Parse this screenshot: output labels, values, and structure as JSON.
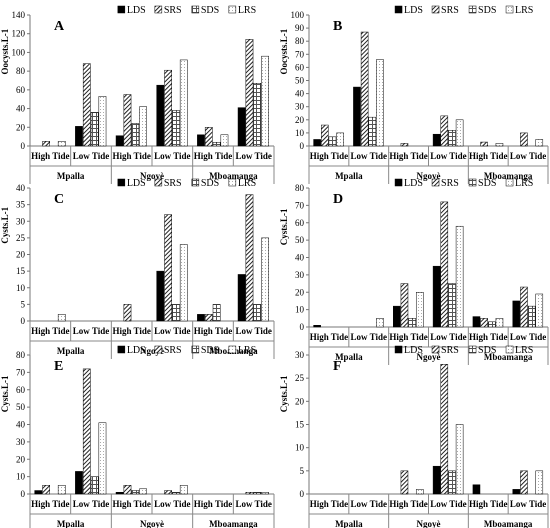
{
  "legend": [
    "LDS",
    "SRS",
    "SDS",
    "LRS"
  ],
  "chart_data": [
    {
      "type": "bar",
      "panel_label": "A",
      "ylabel": "Oocysts.L-1",
      "ylim": [
        0,
        140
      ],
      "yticks": [
        0,
        20,
        40,
        60,
        80,
        100,
        120,
        140
      ],
      "tide_labels": [
        "High Tide",
        "Low Tide"
      ],
      "sites": [
        "Mpalla",
        "Ngoyè",
        "Mboamanga"
      ],
      "series": [
        {
          "name": "LDS",
          "values": [
            0,
            21,
            11,
            65,
            12,
            41
          ]
        },
        {
          "name": "SRS",
          "values": [
            5,
            88,
            55,
            81,
            20,
            114
          ]
        },
        {
          "name": "SDS",
          "values": [
            0,
            36,
            24,
            38,
            4,
            67
          ]
        },
        {
          "name": "LRS",
          "values": [
            5,
            53,
            42,
            92,
            12,
            96
          ]
        }
      ]
    },
    {
      "type": "bar",
      "panel_label": "B",
      "ylabel": "Oocysts.L-1",
      "ylim": [
        0,
        100
      ],
      "yticks": [
        0,
        10,
        20,
        30,
        40,
        50,
        60,
        70,
        80,
        90,
        100
      ],
      "tide_labels": [
        "High Tide",
        "Low Tide"
      ],
      "sites": [
        "Mpalla",
        "Ngoyè",
        "Mboamanga"
      ],
      "series": [
        {
          "name": "LDS",
          "values": [
            5,
            45,
            0,
            9,
            0,
            0
          ]
        },
        {
          "name": "SRS",
          "values": [
            16,
            87,
            2,
            23,
            3,
            10
          ]
        },
        {
          "name": "SDS",
          "values": [
            7,
            22,
            0,
            12,
            0,
            0
          ]
        },
        {
          "name": "LRS",
          "values": [
            10,
            66,
            0,
            20,
            2,
            5
          ]
        }
      ]
    },
    {
      "type": "bar",
      "panel_label": "C",
      "ylabel": "Cysts.L-1",
      "ylim": [
        0,
        40
      ],
      "yticks": [
        0,
        5,
        10,
        15,
        20,
        25,
        30,
        35,
        40
      ],
      "tide_labels": [
        "High Tide",
        "Low Tide"
      ],
      "sites": [
        "Mpalla",
        "Ngoyè",
        "Mboamanga"
      ],
      "series": [
        {
          "name": "LDS",
          "values": [
            0,
            0,
            0,
            15,
            2,
            14
          ]
        },
        {
          "name": "SRS",
          "values": [
            0,
            0,
            5,
            32,
            2,
            38
          ]
        },
        {
          "name": "SDS",
          "values": [
            0,
            0,
            0,
            5,
            5,
            5
          ]
        },
        {
          "name": "LRS",
          "values": [
            2,
            0,
            0,
            23,
            0,
            25
          ]
        }
      ]
    },
    {
      "type": "bar",
      "panel_label": "D",
      "ylabel": "Cysts.L-1",
      "ylim": [
        0,
        80
      ],
      "yticks": [
        0,
        10,
        20,
        30,
        40,
        50,
        60,
        70,
        80
      ],
      "tide_labels": [
        "High Tide",
        "Low Tide"
      ],
      "sites": [
        "Mpalla",
        "Ngoyè",
        "Mboamanga"
      ],
      "series": [
        {
          "name": "LDS",
          "values": [
            1,
            0,
            12,
            35,
            6,
            15
          ]
        },
        {
          "name": "SRS",
          "values": [
            0,
            0,
            25,
            72,
            5,
            23
          ]
        },
        {
          "name": "SDS",
          "values": [
            0,
            0,
            5,
            25,
            3,
            12
          ]
        },
        {
          "name": "LRS",
          "values": [
            0,
            5,
            20,
            58,
            5,
            19
          ]
        }
      ]
    },
    {
      "type": "bar",
      "panel_label": "E",
      "ylabel": "Cysts.L-1",
      "ylim": [
        0,
        80
      ],
      "yticks": [
        0,
        10,
        20,
        30,
        40,
        50,
        60,
        70,
        80
      ],
      "tide_labels": [
        "High Tide",
        "Low Tide"
      ],
      "sites": [
        "Mpalla",
        "Ngoyè",
        "Mboamanga"
      ],
      "series": [
        {
          "name": "LDS",
          "values": [
            2,
            13,
            1,
            0,
            0,
            0
          ]
        },
        {
          "name": "SRS",
          "values": [
            5,
            72,
            5,
            2,
            0,
            1
          ]
        },
        {
          "name": "SDS",
          "values": [
            0,
            10,
            2,
            1,
            0,
            1
          ]
        },
        {
          "name": "LRS",
          "values": [
            5,
            41,
            3,
            5,
            0,
            1
          ]
        }
      ]
    },
    {
      "type": "bar",
      "panel_label": "F",
      "ylabel": "Cysts.L-1",
      "ylim": [
        0,
        30
      ],
      "yticks": [
        0,
        5,
        10,
        15,
        20,
        25,
        30
      ],
      "tide_labels": [
        "High Tide",
        "Low Tide"
      ],
      "sites": [
        "Mpalla",
        "Ngoyè",
        "Mboamanga"
      ],
      "series": [
        {
          "name": "LDS",
          "values": [
            0,
            0,
            0,
            6,
            2,
            1
          ]
        },
        {
          "name": "SRS",
          "values": [
            0,
            0,
            5,
            28,
            0,
            5
          ]
        },
        {
          "name": "SDS",
          "values": [
            0,
            0,
            0,
            5,
            0,
            0
          ]
        },
        {
          "name": "LRS",
          "values": [
            0,
            0,
            1,
            15,
            0,
            5
          ]
        }
      ]
    }
  ]
}
